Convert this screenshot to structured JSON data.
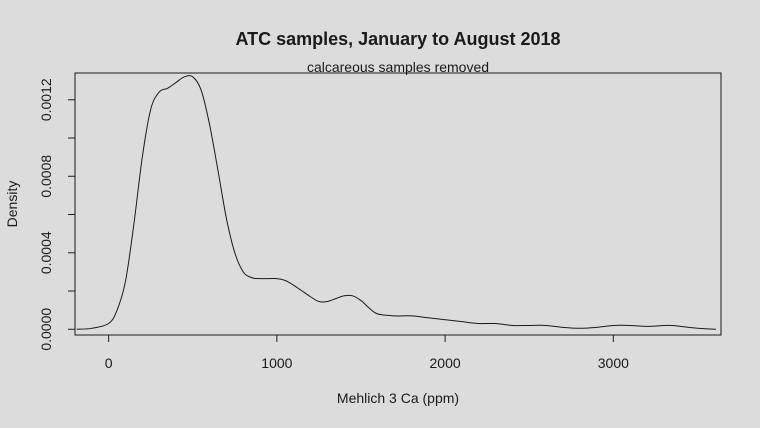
{
  "chart_data": {
    "type": "line",
    "title": "ATC samples, January to August 2018",
    "subtitle": "calcareous samples removed",
    "xlabel": "Mehlich 3 Ca (ppm)",
    "ylabel": "Density",
    "xlim": [
      -200,
      3640
    ],
    "ylim": [
      -3e-05,
      0.00134
    ],
    "x_ticks": [
      {
        "value": 0,
        "label": "0"
      },
      {
        "value": 1000,
        "label": "1000"
      },
      {
        "value": 2000,
        "label": "2000"
      },
      {
        "value": 3000,
        "label": "3000"
      }
    ],
    "y_ticks": [
      {
        "value": 0.0,
        "label": "0.0000"
      },
      {
        "value": 0.0002,
        "label": ""
      },
      {
        "value": 0.0004,
        "label": "0.0004"
      },
      {
        "value": 0.0006,
        "label": ""
      },
      {
        "value": 0.0008,
        "label": "0.0008"
      },
      {
        "value": 0.001,
        "label": ""
      },
      {
        "value": 0.0012,
        "label": "0.0012"
      }
    ],
    "grid": false,
    "series": [
      {
        "x": [
          -190,
          -100,
          0,
          50,
          100,
          150,
          200,
          250,
          300,
          350,
          400,
          450,
          500,
          550,
          600,
          650,
          700,
          750,
          800,
          850,
          900,
          950,
          1000,
          1050,
          1100,
          1150,
          1200,
          1250,
          1300,
          1350,
          1400,
          1450,
          1500,
          1550,
          1600,
          1700,
          1800,
          1900,
          2000,
          2100,
          2200,
          2300,
          2400,
          2500,
          2600,
          2700,
          2800,
          2900,
          3000,
          3100,
          3200,
          3300,
          3350,
          3400,
          3500,
          3610
        ],
        "y": [
          0.0,
          5e-06,
          3e-05,
          0.0001,
          0.00025,
          0.00055,
          0.0009,
          0.00115,
          0.00124,
          0.00126,
          0.00129,
          0.00132,
          0.00132,
          0.00125,
          0.00107,
          0.00083,
          0.00058,
          0.0004,
          0.0003,
          0.00027,
          0.000265,
          0.000265,
          0.000265,
          0.000255,
          0.00023,
          0.0002,
          0.00017,
          0.000145,
          0.000145,
          0.00016,
          0.000175,
          0.000175,
          0.00015,
          0.00011,
          8e-05,
          7e-05,
          7e-05,
          6e-05,
          5e-05,
          4e-05,
          3e-05,
          3e-05,
          2e-05,
          2e-05,
          2e-05,
          1e-05,
          5e-06,
          1e-05,
          2e-05,
          2e-05,
          1.5e-05,
          2e-05,
          2e-05,
          1.5e-05,
          5e-06,
          0.0
        ]
      }
    ]
  }
}
